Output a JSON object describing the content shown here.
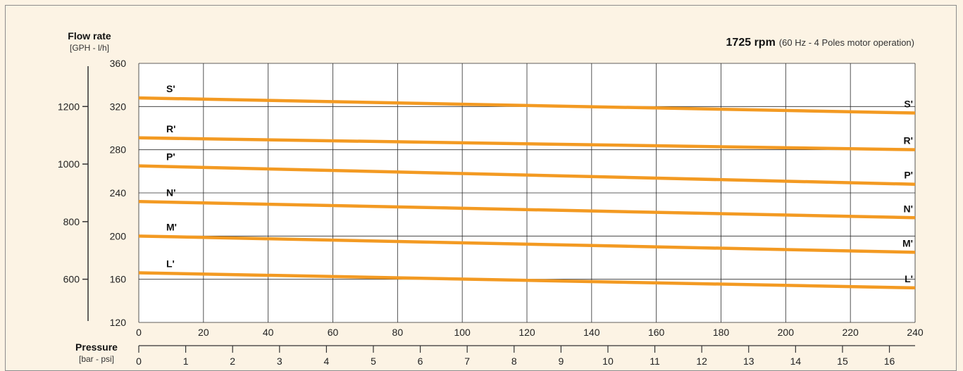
{
  "chart_data": {
    "type": "line",
    "y_title": "Flow rate",
    "y_units": "[GPH - l/h]",
    "x_title": "Pressure",
    "x_units": "[bar - psi]",
    "subtitle_bold": "1725 rpm",
    "subtitle_rest": "(60 Hz - 4 Poles motor operation)",
    "x_psi_ticks": [
      0,
      20,
      40,
      60,
      80,
      100,
      120,
      140,
      160,
      180,
      200,
      220,
      240
    ],
    "x_bar_ticks": [
      0,
      1,
      2,
      3,
      4,
      5,
      6,
      7,
      8,
      9,
      10,
      11,
      12,
      13,
      14,
      15,
      16
    ],
    "xlim_psi": [
      0,
      240
    ],
    "y_lh_ticks": [
      120,
      160,
      200,
      240,
      280,
      320,
      360
    ],
    "ylim_lh": [
      120,
      360
    ],
    "y_gph_ticks": [
      600,
      800,
      1000,
      1200
    ],
    "grid": true,
    "line_color": "#f39a22",
    "series": [
      {
        "name": "S'",
        "x": [
          0,
          240
        ],
        "y": [
          328,
          314
        ]
      },
      {
        "name": "R'",
        "x": [
          0,
          240
        ],
        "y": [
          291,
          280
        ]
      },
      {
        "name": "P'",
        "x": [
          0,
          240
        ],
        "y": [
          265,
          248
        ]
      },
      {
        "name": "N'",
        "x": [
          0,
          240
        ],
        "y": [
          232,
          217
        ]
      },
      {
        "name": "M'",
        "x": [
          0,
          240
        ],
        "y": [
          200,
          185
        ]
      },
      {
        "name": "L'",
        "x": [
          0,
          240
        ],
        "y": [
          166,
          152
        ]
      }
    ]
  }
}
